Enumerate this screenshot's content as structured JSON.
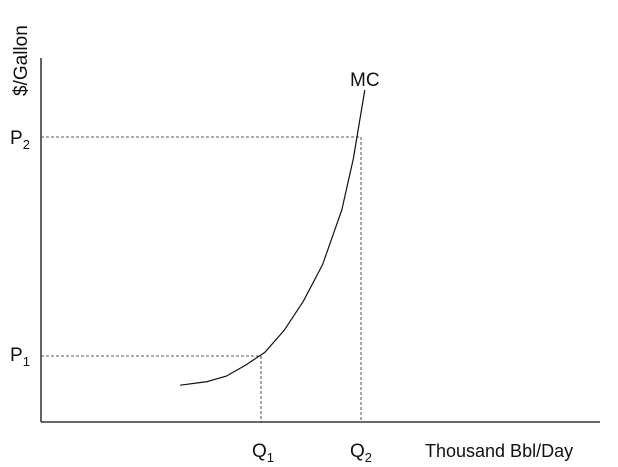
{
  "chart_data": {
    "type": "line",
    "title": "",
    "ylabel": "$/Gallon",
    "xlabel": "Thousand Bbl/Day",
    "grid": false,
    "series": [
      {
        "name": "MC",
        "x": [
          0.43,
          0.5,
          0.55,
          0.6,
          0.65,
          0.7,
          0.75,
          0.8,
          0.85,
          0.88,
          0.91
        ],
        "y": [
          0.1,
          0.11,
          0.125,
          0.155,
          0.19,
          0.25,
          0.33,
          0.43,
          0.58,
          0.72,
          0.95
        ]
      }
    ],
    "x_ticks": [
      {
        "label": "Q",
        "sub": "1",
        "value": 0.64
      },
      {
        "label": "Q",
        "sub": "2",
        "value": 0.9
      }
    ],
    "y_ticks": [
      {
        "label": "P",
        "sub": "1",
        "value": 0.18
      },
      {
        "label": "P",
        "sub": "2",
        "value": 0.78
      }
    ],
    "reference_lines": [
      {
        "from": "P1",
        "to": "Q1"
      },
      {
        "from": "P2",
        "to": "Q2"
      }
    ],
    "xlim": [
      0,
      1.5
    ],
    "ylim": [
      0,
      1.0
    ]
  }
}
